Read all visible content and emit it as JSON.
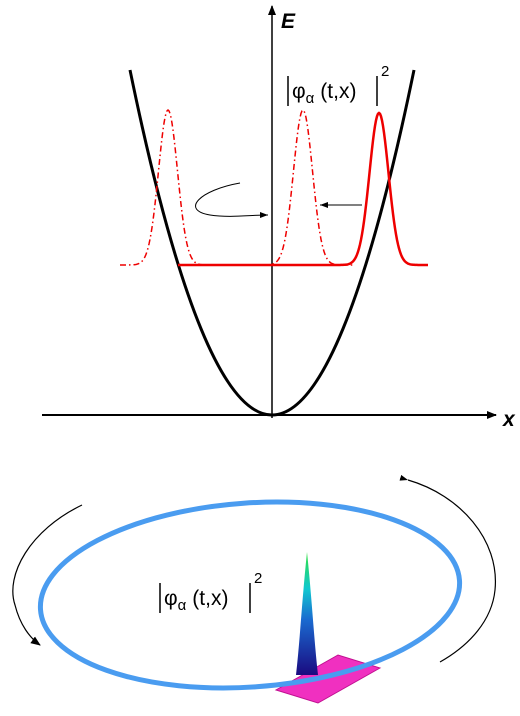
{
  "axes": {
    "energy_label": "E",
    "position_label": "x"
  },
  "top_label": {
    "symbol": "φ",
    "subscript": "α",
    "argument": "(t,x)",
    "power": "2"
  },
  "bottom_label": {
    "symbol": "φ",
    "subscript": "α",
    "argument": "(t,x)",
    "power": "2"
  }
}
